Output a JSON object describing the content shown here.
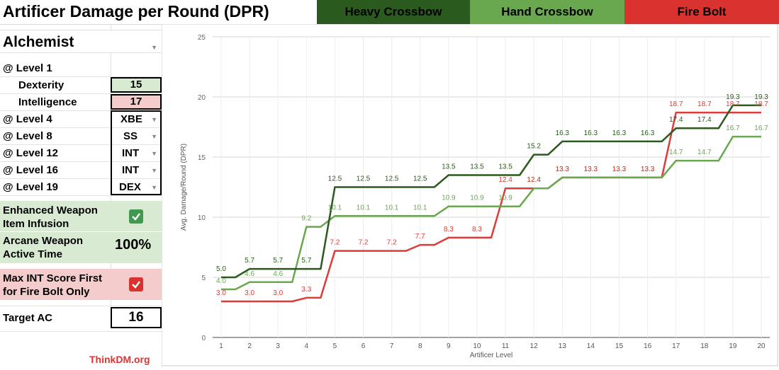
{
  "title": "Artificer Damage per Round (DPR)",
  "legend": [
    {
      "label": "Heavy Crossbow",
      "color": "#2b5a1e"
    },
    {
      "label": "Hand Crossbow",
      "color": "#6aa84f"
    },
    {
      "label": "Fire Bolt",
      "color": "#d9322f"
    }
  ],
  "panel": {
    "subclass": "Alchemist",
    "level1": "@ Level 1",
    "dexterity_label": "Dexterity",
    "dexterity_value": "15",
    "intelligence_label": "Intelligence",
    "intelligence_value": "17",
    "level4_label": "@ Level 4",
    "level4_value": "XBE",
    "level8_label": "@ Level 8",
    "level8_value": "SS",
    "level12_label": "@ Level 12",
    "level12_value": "INT",
    "level16_label": "@ Level 16",
    "level16_value": "INT",
    "level19_label": "@ Level 19",
    "level19_value": "DEX",
    "enhanced_label_1": "Enhanced Weapon",
    "enhanced_label_2": "Item Infusion",
    "arcane_label_1": "Arcane Weapon",
    "arcane_label_2": "Active Time",
    "arcane_value": "100%",
    "maxint_label_1": "Max INT Score First",
    "maxint_label_2": "for Fire Bolt Only",
    "target_ac_label": "Target AC",
    "target_ac_value": "16",
    "brand": "ThinkDM.org",
    "colors": {
      "green_fill": "#d9ead3",
      "red_fill": "#f4cccc",
      "checkbox_green": "#3f9a4f",
      "checkbox_red": "#d9322f"
    }
  },
  "chart_data": {
    "type": "line",
    "xlabel": "Artificer Level",
    "ylabel": "Avg. Damage/Round (DPR)",
    "x": [
      1,
      2,
      3,
      4,
      5,
      6,
      7,
      8,
      9,
      10,
      11,
      12,
      13,
      14,
      15,
      16,
      17,
      18,
      19,
      20
    ],
    "ylim": [
      0,
      25
    ],
    "yticks": [
      0,
      5,
      10,
      15,
      20,
      25
    ],
    "grid": true,
    "series": [
      {
        "name": "Heavy Crossbow",
        "color": "#2b5a1e",
        "values": [
          5.0,
          5.7,
          5.7,
          5.7,
          12.5,
          12.5,
          12.5,
          12.5,
          13.5,
          13.5,
          13.5,
          15.2,
          16.3,
          16.3,
          16.3,
          16.3,
          17.4,
          17.4,
          19.3,
          19.3
        ]
      },
      {
        "name": "Hand Crossbow",
        "color": "#6aa84f",
        "values": [
          4.0,
          4.6,
          4.6,
          9.2,
          10.1,
          10.1,
          10.1,
          10.1,
          10.9,
          10.9,
          10.9,
          12.4,
          13.3,
          13.3,
          13.3,
          13.3,
          14.7,
          14.7,
          16.7,
          16.7
        ]
      },
      {
        "name": "Fire Bolt",
        "color": "#e03a36",
        "values": [
          3.0,
          3.0,
          3.0,
          3.3,
          7.2,
          7.2,
          7.2,
          7.7,
          8.3,
          8.3,
          12.4,
          12.4,
          13.3,
          13.3,
          13.3,
          13.3,
          18.7,
          18.7,
          18.7,
          18.7
        ]
      }
    ]
  }
}
